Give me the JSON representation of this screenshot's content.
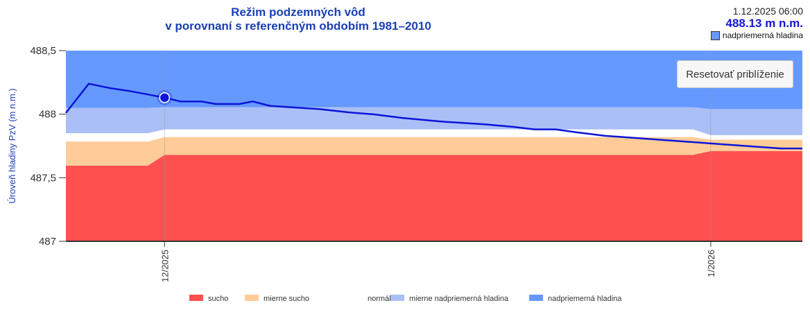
{
  "header": {
    "title1": "Režim podzemných vôd",
    "title2": "v porovnaní s referenčným obdobím 1981–2010"
  },
  "tooltip": {
    "datetime": "1.12.2025 06:00",
    "value": "488.13 m n.m.",
    "category": "nadpriemerná hladina",
    "category_color": "#6699ff"
  },
  "reset_button": "Resetovať priblíženie",
  "chart_data": {
    "type": "area",
    "title": "Režim podzemných vôd v porovnaní s referenčným obdobím 1981–2010",
    "ylabel": "Úroveň hladiny PzV (m n.m.)",
    "ylim": [
      487,
      488.5
    ],
    "yticks": [
      {
        "v": 487,
        "label": "487"
      },
      {
        "v": 487.5,
        "label": "487,5"
      },
      {
        "v": 488,
        "label": "488"
      },
      {
        "v": 488.5,
        "label": "488,5"
      }
    ],
    "x_unit": "days since 1.12.2025",
    "xlim": [
      -5.6,
      36.2
    ],
    "xticks": [
      {
        "v": 0,
        "label": "12/2025"
      },
      {
        "v": 31,
        "label": "1/2026"
      }
    ],
    "band_x": [
      -5.6,
      -0.95,
      0,
      30,
      31,
      36.2
    ],
    "bands": [
      {
        "name": "sucho",
        "color": "#ff5050",
        "lower": [
          487,
          487,
          487,
          487,
          487,
          487
        ],
        "upper": [
          487.595,
          487.595,
          487.68,
          487.68,
          487.71,
          487.71
        ]
      },
      {
        "name": "mierne sucho",
        "color": "#ffcc99",
        "lower": [
          487.595,
          487.595,
          487.68,
          487.68,
          487.71,
          487.71
        ],
        "upper": [
          487.785,
          487.785,
          487.82,
          487.82,
          487.8,
          487.8
        ]
      },
      {
        "name": "normál",
        "color": "#ffffff",
        "lower": [
          487.785,
          487.785,
          487.82,
          487.82,
          487.8,
          487.8
        ],
        "upper": [
          487.85,
          487.85,
          487.88,
          487.88,
          487.835,
          487.835
        ]
      },
      {
        "name": "mierne nadpriemerná hladina",
        "color": "#aabff5",
        "lower": [
          487.85,
          487.85,
          487.88,
          487.88,
          487.835,
          487.835
        ],
        "upper": [
          488.05,
          488.05,
          488.055,
          488.055,
          488.04,
          488.04
        ]
      },
      {
        "name": "nadpriemerná hladina",
        "color": "#6699ff",
        "lower": [
          488.05,
          488.05,
          488.055,
          488.055,
          488.04,
          488.04
        ],
        "upper": [
          488.5,
          488.5,
          488.5,
          488.5,
          488.5,
          488.5
        ]
      }
    ],
    "series": [
      {
        "name": "Úroveň hladiny PzV",
        "color": "#0a14d8",
        "x": [
          -5.6,
          -4.3,
          -3.1,
          -1.9,
          0,
          0.9,
          2.1,
          2.9,
          4.25,
          5,
          6,
          8.8,
          10.4,
          11.9,
          13.5,
          15.9,
          18.2,
          19.8,
          21,
          22.2,
          23.4,
          25,
          28,
          31,
          34,
          35,
          36.2
        ],
        "y": [
          488.01,
          488.24,
          488.205,
          488.18,
          488.13,
          488.1,
          488.1,
          488.08,
          488.08,
          488.1,
          488.065,
          488.04,
          488.015,
          487.998,
          487.97,
          487.94,
          487.92,
          487.9,
          487.88,
          487.88,
          487.857,
          487.83,
          487.8,
          487.77,
          487.74,
          487.73,
          487.73
        ]
      }
    ],
    "highlight": {
      "x": 0,
      "y": 488.13
    },
    "legend_position": "bottom"
  }
}
